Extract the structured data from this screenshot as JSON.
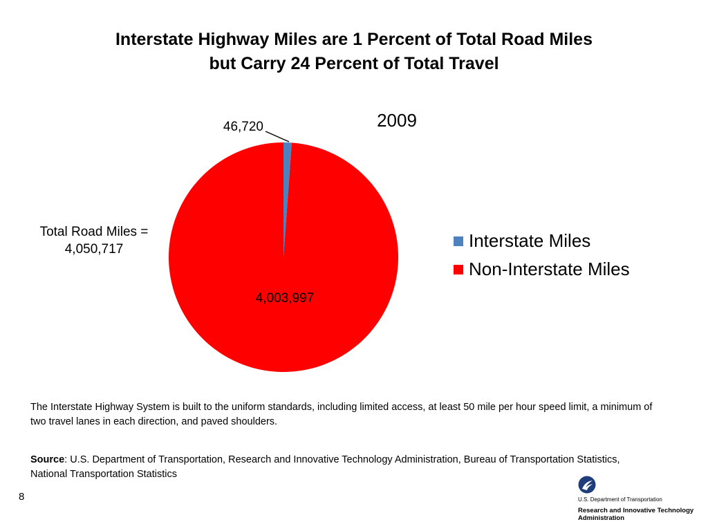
{
  "title": {
    "line1": "Interstate Highway Miles are 1 Percent of Total Road Miles",
    "line2": "but Carry 24 Percent of Total Travel"
  },
  "chart_data": {
    "type": "pie",
    "title": "2009",
    "slices": [
      {
        "name": "Interstate Miles",
        "value": 46720,
        "label": "46,720",
        "color": "#4F81BD"
      },
      {
        "name": "Non-Interstate Miles",
        "value": 4003997,
        "label": "4,003,997",
        "color": "#FF0000"
      }
    ],
    "legend_placement": "right"
  },
  "total_label": {
    "line1": "Total Road Miles =",
    "line2": "4,050,717"
  },
  "note": "The Interstate Highway System is built to the uniform standards, including limited access, at least 50 mile per hour speed limit, a minimum of two travel lanes in each direction, and paved shoulders.",
  "source": {
    "label": "Source",
    "text": ": U.S. Department of Transportation, Research and Innovative Technology Administration, Bureau of Transportation Statistics, National Transportation Statistics"
  },
  "page_number": "8",
  "logo": {
    "department": "U.S. Department of Transportation",
    "admin_line1": "Research and Innovative Technology",
    "admin_line2": "Administration"
  }
}
